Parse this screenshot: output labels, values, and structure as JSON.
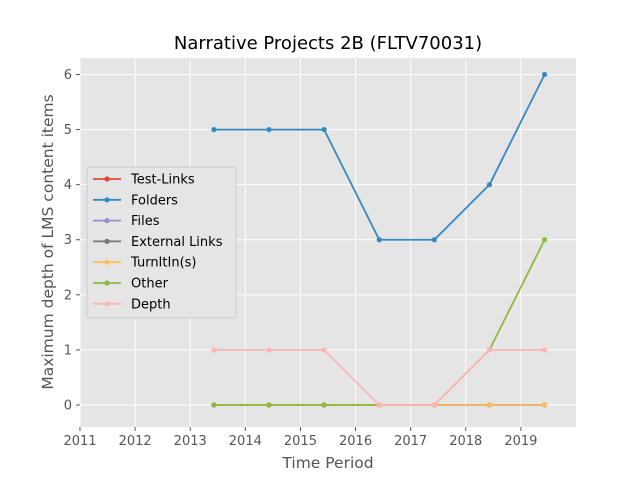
{
  "chart_data": {
    "type": "line",
    "title": "Narrative Projects 2B (FLTV70031)",
    "xlabel": "Time Period",
    "ylabel": "Maximum depth of LMS content items",
    "xlim": [
      2011,
      2020
    ],
    "ylim": [
      -0.4,
      6.3
    ],
    "xticks": [
      2011,
      2012,
      2013,
      2014,
      2015,
      2016,
      2017,
      2018,
      2019
    ],
    "yticks": [
      0,
      1,
      2,
      3,
      4,
      5,
      6
    ],
    "grid": true,
    "legend_position": "center-left",
    "x": [
      2013.43,
      2014.43,
      2015.43,
      2016.43,
      2017.43,
      2018.43,
      2019.43
    ],
    "series": [
      {
        "name": "Test-Links",
        "color": "#E24A33",
        "values": [
          0,
          0,
          0,
          0,
          0,
          0,
          0
        ]
      },
      {
        "name": "Folders",
        "color": "#348ABD",
        "values": [
          5,
          5,
          5,
          3,
          3,
          4,
          6
        ]
      },
      {
        "name": "Files",
        "color": "#988ED5",
        "values": [
          0,
          0,
          0,
          0,
          0,
          0,
          0
        ]
      },
      {
        "name": "External Links",
        "color": "#777777",
        "values": [
          0,
          0,
          0,
          0,
          0,
          0,
          0
        ]
      },
      {
        "name": "TurnItIn(s)",
        "color": "#FBC15E",
        "values": [
          0,
          0,
          0,
          0,
          0,
          0,
          0
        ]
      },
      {
        "name": "Other",
        "color": "#8EBA42",
        "values": [
          0,
          0,
          0,
          0,
          0,
          1,
          3
        ]
      },
      {
        "name": "Depth",
        "color": "#FFB5B8",
        "values": [
          1,
          1,
          1,
          0,
          0,
          1,
          1
        ]
      }
    ]
  }
}
